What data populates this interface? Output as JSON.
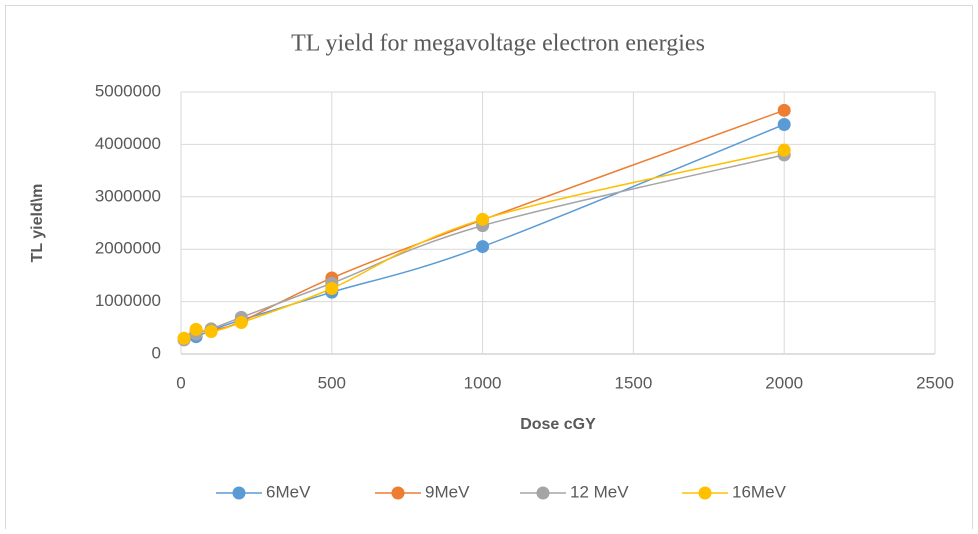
{
  "chart_data": {
    "type": "line",
    "title": "TL yield for megavoltage electron energies",
    "x_label": "Dose cGY",
    "y_label": "TL yield\\m",
    "x": [
      10,
      50,
      100,
      200,
      500,
      1000,
      2000
    ],
    "series": [
      {
        "name": "6MeV",
        "color": "#5b9bd5",
        "values": [
          280000,
          330000,
          450000,
          650000,
          1180000,
          2050000,
          4380000
        ]
      },
      {
        "name": "9MeV",
        "color": "#ed7d31",
        "values": [
          290000,
          420000,
          460000,
          620000,
          1450000,
          2560000,
          4650000
        ]
      },
      {
        "name": "12 MeV",
        "color": "#a5a5a5",
        "values": [
          270000,
          380000,
          480000,
          700000,
          1350000,
          2450000,
          3800000
        ]
      },
      {
        "name": "16MeV",
        "color": "#ffc000",
        "values": [
          300000,
          470000,
          430000,
          600000,
          1250000,
          2570000,
          3890000
        ]
      }
    ],
    "xlim": [
      0,
      2500
    ],
    "xticks": [
      0,
      500,
      1000,
      1500,
      2000,
      2500
    ],
    "ylim": [
      0,
      5000000
    ],
    "yticks": [
      0,
      1000000,
      2000000,
      3000000,
      4000000,
      5000000
    ],
    "grid": true,
    "legend": "bottom"
  }
}
